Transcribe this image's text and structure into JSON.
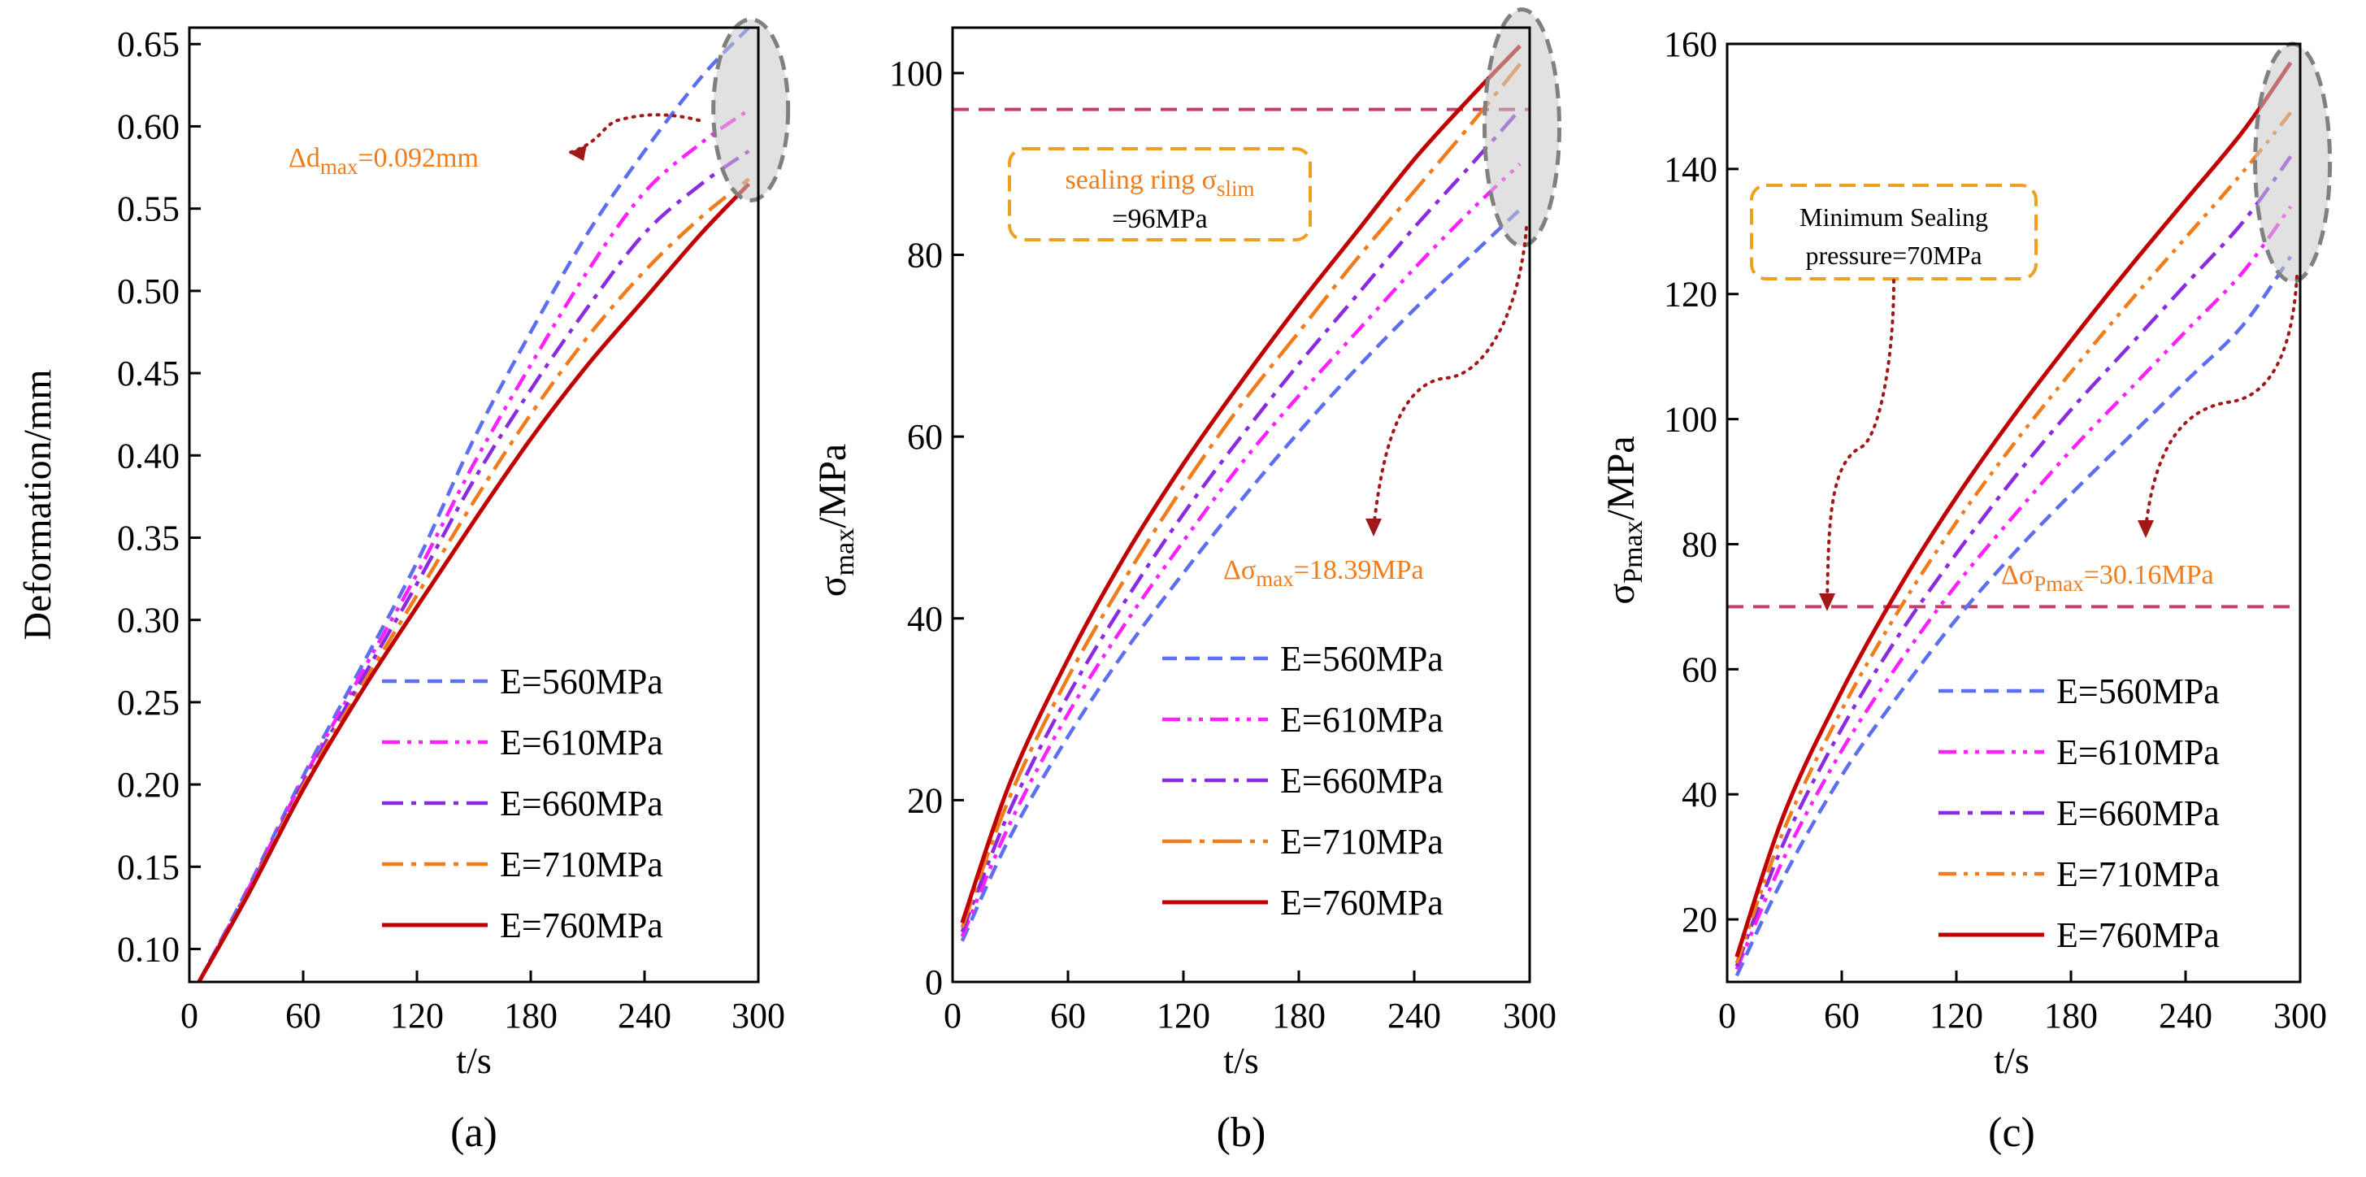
{
  "chart_data": [
    {
      "type": "line",
      "panel_label": "(a)",
      "xlabel": "t/s",
      "ylabel": "Deformation/mm",
      "xlim": [
        0,
        300
      ],
      "ylim": [
        0.08,
        0.66
      ],
      "xticks": [
        0,
        60,
        120,
        180,
        240,
        300
      ],
      "yticks": [
        0.1,
        0.15,
        0.2,
        0.25,
        0.3,
        0.35,
        0.4,
        0.45,
        0.5,
        0.55,
        0.6,
        0.65
      ],
      "tick_labels_x": [
        "0",
        "60",
        "120",
        "180",
        "240",
        "300"
      ],
      "tick_labels_y": [
        "0.10",
        "0.15",
        "0.20",
        "0.25",
        "0.30",
        "0.35",
        "0.40",
        "0.45",
        "0.50",
        "0.55",
        "0.60",
        "0.65"
      ],
      "legend_position": "bottom-right",
      "grid": false,
      "series": [
        {
          "name": "E=560MPa",
          "color": "#5b6ff0",
          "dash": "dash",
          "x": [
            5,
            30,
            60,
            90,
            120,
            150,
            180,
            210,
            240,
            270,
            295
          ],
          "y": [
            0.08,
            0.135,
            0.205,
            0.27,
            0.335,
            0.41,
            0.475,
            0.535,
            0.585,
            0.63,
            0.66
          ]
        },
        {
          "name": "E=610MPa",
          "color": "#ff20ff",
          "dash": "dashdotdot",
          "x": [
            5,
            30,
            60,
            90,
            120,
            150,
            180,
            210,
            240,
            270,
            295
          ],
          "y": [
            0.08,
            0.134,
            0.203,
            0.266,
            0.328,
            0.395,
            0.455,
            0.512,
            0.56,
            0.59,
            0.61
          ]
        },
        {
          "name": "E=660MPa",
          "color": "#8a2be2",
          "dash": "dashdot",
          "x": [
            5,
            30,
            60,
            90,
            120,
            150,
            180,
            210,
            240,
            270,
            295
          ],
          "y": [
            0.08,
            0.133,
            0.201,
            0.262,
            0.322,
            0.385,
            0.44,
            0.49,
            0.535,
            0.565,
            0.585
          ]
        },
        {
          "name": "E=710MPa",
          "color": "#f07c1c",
          "dash": "dashdot",
          "x": [
            5,
            30,
            60,
            90,
            120,
            150,
            180,
            210,
            240,
            270,
            295
          ],
          "y": [
            0.08,
            0.132,
            0.199,
            0.258,
            0.315,
            0.372,
            0.425,
            0.472,
            0.512,
            0.545,
            0.568
          ]
        },
        {
          "name": "E=760MPa",
          "color": "#c00000",
          "dash": "solid",
          "x": [
            5,
            30,
            60,
            90,
            120,
            150,
            180,
            210,
            240,
            270,
            295
          ],
          "y": [
            0.08,
            0.131,
            0.197,
            0.255,
            0.308,
            0.36,
            0.41,
            0.455,
            0.495,
            0.535,
            0.565
          ]
        }
      ],
      "annotations": [
        {
          "text_main": "Δd",
          "text_sub": "max",
          "text_tail": "=0.092mm",
          "color": "#f07c1c"
        }
      ],
      "ellipse_highlight": {
        "x": 296,
        "y_center": 0.61,
        "y_half": 0.055
      }
    },
    {
      "type": "line",
      "panel_label": "(b)",
      "xlabel": "t/s",
      "ylabel_main": "σ",
      "ylabel_sub": "max",
      "ylabel_tail": "/MPa",
      "xlim": [
        0,
        300
      ],
      "ylim": [
        0,
        105
      ],
      "xticks": [
        0,
        60,
        120,
        180,
        240,
        300
      ],
      "yticks": [
        0,
        20,
        40,
        60,
        80,
        100
      ],
      "tick_labels_x": [
        "0",
        "60",
        "120",
        "180",
        "240",
        "300"
      ],
      "tick_labels_y": [
        "0",
        "20",
        "40",
        "60",
        "80",
        "100"
      ],
      "legend_position": "bottom-right",
      "grid": false,
      "reference_line": {
        "y": 96,
        "color": "#c0406a"
      },
      "series": [
        {
          "name": "E=560MPa",
          "color": "#5b6ff0",
          "dash": "dash",
          "x": [
            5,
            30,
            60,
            90,
            120,
            150,
            180,
            210,
            240,
            270,
            295
          ],
          "y": [
            4.5,
            16,
            27,
            36.5,
            45,
            53,
            60.5,
            67.5,
            74,
            80,
            85
          ]
        },
        {
          "name": "E=610MPa",
          "color": "#ff20ff",
          "dash": "dashdotdot",
          "x": [
            5,
            30,
            60,
            90,
            120,
            150,
            180,
            210,
            240,
            270,
            295
          ],
          "y": [
            5,
            17.5,
            29.5,
            39.5,
            48.5,
            57,
            64.5,
            71.5,
            78.5,
            85,
            90
          ]
        },
        {
          "name": "E=660MPa",
          "color": "#8a2be2",
          "dash": "dashdot",
          "x": [
            5,
            30,
            60,
            90,
            120,
            150,
            180,
            210,
            240,
            270,
            295
          ],
          "y": [
            5.5,
            19,
            31.5,
            42,
            51.5,
            60,
            68,
            75.5,
            83,
            90,
            96
          ]
        },
        {
          "name": "E=710MPa",
          "color": "#f07c1c",
          "dash": "longdashdot",
          "x": [
            5,
            30,
            60,
            90,
            120,
            150,
            180,
            210,
            240,
            270,
            295
          ],
          "y": [
            6,
            20.5,
            33.5,
            44.5,
            54.5,
            63.5,
            71.5,
            79.5,
            87,
            94.5,
            101
          ]
        },
        {
          "name": "E=760MPa",
          "color": "#c00000",
          "dash": "solid",
          "x": [
            5,
            30,
            60,
            90,
            120,
            150,
            180,
            210,
            240,
            270,
            295
          ],
          "y": [
            6.5,
            22,
            35.5,
            47,
            57,
            66,
            74.5,
            82.5,
            90.5,
            97.5,
            103
          ]
        }
      ],
      "annotations": [
        {
          "box_line1_main": "sealing ring σ",
          "box_line1_sub": "slim",
          "box_line2": "=96MPa",
          "color": "#f07c1c"
        },
        {
          "text_main": "Δσ",
          "text_sub": "max",
          "text_tail": "=18.39MPa",
          "color": "#f07c1c"
        }
      ],
      "ellipse_highlight": {
        "x": 296,
        "y_center": 94,
        "y_half": 13
      }
    },
    {
      "type": "line",
      "panel_label": "(c)",
      "xlabel": "t/s",
      "ylabel_main": "σ",
      "ylabel_sub": "Pmax",
      "ylabel_tail": "/MPa",
      "xlim": [
        0,
        300
      ],
      "ylim": [
        10,
        160
      ],
      "xticks": [
        0,
        60,
        120,
        180,
        240,
        300
      ],
      "yticks": [
        20,
        40,
        60,
        80,
        100,
        120,
        140,
        160
      ],
      "tick_labels_x": [
        "0",
        "60",
        "120",
        "180",
        "240",
        "300"
      ],
      "tick_labels_y": [
        "20",
        "40",
        "60",
        "80",
        "100",
        "120",
        "140",
        "160"
      ],
      "legend_position": "bottom-right",
      "grid": false,
      "reference_line": {
        "y": 70,
        "color": "#c0406a"
      },
      "series": [
        {
          "name": "E=560MPa",
          "color": "#5b6ff0",
          "dash": "dash",
          "x": [
            5,
            30,
            60,
            90,
            120,
            150,
            180,
            210,
            240,
            270,
            295
          ],
          "y": [
            11,
            27,
            43,
            56,
            68,
            78.5,
            88,
            97,
            106,
            115,
            126
          ]
        },
        {
          "name": "E=610MPa",
          "color": "#ff20ff",
          "dash": "dashdotdot",
          "x": [
            5,
            30,
            60,
            90,
            120,
            150,
            180,
            210,
            240,
            270,
            295
          ],
          "y": [
            12,
            30,
            47,
            61,
            73.5,
            84.5,
            95,
            104.5,
            114,
            123.5,
            134
          ]
        },
        {
          "name": "E=660MPa",
          "color": "#8a2be2",
          "dash": "dashdot",
          "x": [
            5,
            30,
            60,
            90,
            120,
            150,
            180,
            210,
            240,
            270,
            295
          ],
          "y": [
            12.5,
            32.5,
            50.5,
            65.5,
            78.5,
            90.5,
            101.5,
            111.5,
            121.5,
            131.5,
            142
          ]
        },
        {
          "name": "E=710MPa",
          "color": "#f07c1c",
          "dash": "dashdotdot",
          "x": [
            5,
            30,
            60,
            90,
            120,
            150,
            180,
            210,
            240,
            270,
            295
          ],
          "y": [
            13,
            34.5,
            53.5,
            69.5,
            83.5,
            96,
            107.5,
            118.5,
            129,
            139.5,
            149
          ]
        },
        {
          "name": "E=760MPa",
          "color": "#c00000",
          "dash": "solid",
          "x": [
            5,
            30,
            60,
            90,
            120,
            150,
            180,
            210,
            240,
            270,
            295
          ],
          "y": [
            14,
            37,
            56.5,
            73,
            87.5,
            100.5,
            112.5,
            124,
            135,
            146,
            157
          ]
        }
      ],
      "annotations": [
        {
          "box_line1": "Minimum Sealing",
          "box_line2": "pressure=70MPa",
          "color": "#f07c1c"
        },
        {
          "text_main": "Δσ",
          "text_sub": "Pmax",
          "text_tail": "=30.16MPa",
          "color": "#f07c1c"
        }
      ],
      "ellipse_highlight": {
        "x": 296,
        "y_center": 141,
        "y_half": 19
      }
    }
  ]
}
